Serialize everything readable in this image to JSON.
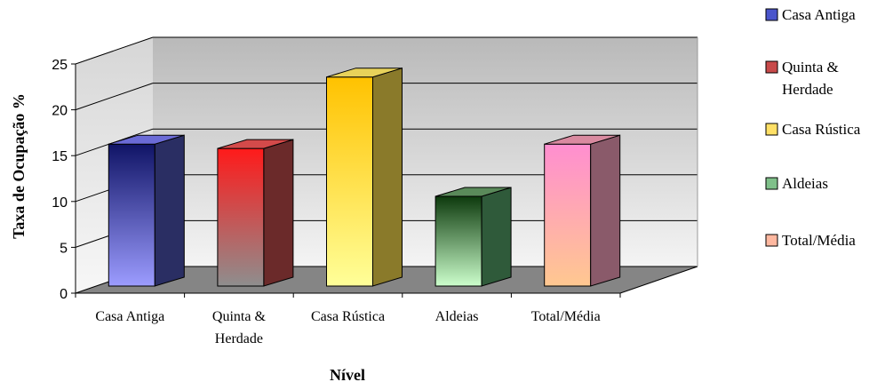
{
  "chart_data": {
    "type": "bar",
    "title": "",
    "xlabel": "Nível",
    "ylabel": "Taxa de Ocupação %",
    "ylim": [
      0,
      25
    ],
    "yticks": [
      0,
      5,
      10,
      15,
      20,
      25
    ],
    "grid": true,
    "legend_position": "right",
    "categories": [
      {
        "lines": [
          "Casa Antiga"
        ]
      },
      {
        "lines": [
          "Quinta &",
          "Herdade"
        ]
      },
      {
        "lines": [
          "Casa Rústica"
        ]
      },
      {
        "lines": [
          "Aldeias"
        ]
      },
      {
        "lines": [
          "Total/Média"
        ]
      }
    ],
    "values": [
      16.3,
      15.8,
      24.0,
      10.3,
      16.3
    ],
    "colors": [
      {
        "top": "#101466",
        "bottom": "#9c9cff",
        "side": "#2a2e63",
        "cap": "#6b6bd6"
      },
      {
        "top": "#ff1a1a",
        "bottom": "#8e8e8e",
        "side": "#6b2a2a",
        "cap": "#d44a4a"
      },
      {
        "top": "#ffc200",
        "bottom": "#ffff99",
        "side": "#8a7a2a",
        "cap": "#e8d25a"
      },
      {
        "top": "#0d3a0d",
        "bottom": "#ccffcc",
        "side": "#2f5a3a",
        "cap": "#5a8a5a"
      },
      {
        "top": "#ff8ed0",
        "bottom": "#ffc890",
        "side": "#8a5a6a",
        "cap": "#d98aa0"
      }
    ],
    "legend": [
      {
        "lines": [
          "Casa Antiga"
        ],
        "color": "#4a55cc"
      },
      {
        "lines": [
          "Quinta &",
          "Herdade"
        ],
        "color": "#c84a4a"
      },
      {
        "lines": [
          "Casa Rústica"
        ],
        "color": "#ffe066"
      },
      {
        "lines": [
          "Aldeias"
        ],
        "color": "#7fc08a"
      },
      {
        "lines": [
          "Total/Média"
        ],
        "color": "#ffb8a0"
      }
    ]
  }
}
